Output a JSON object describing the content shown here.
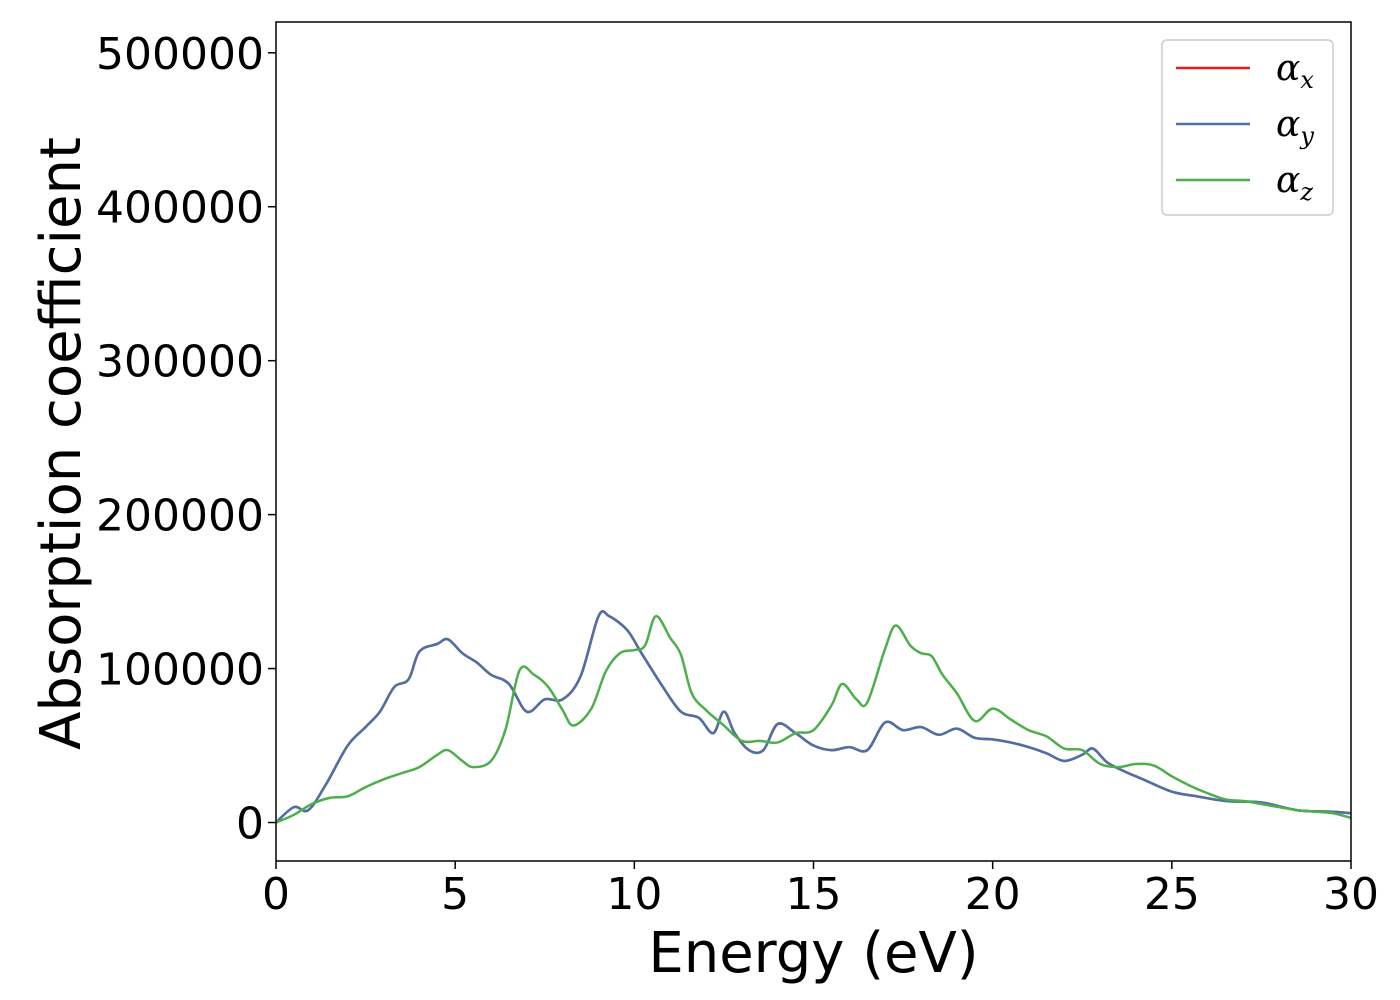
{
  "chart_data": {
    "type": "line",
    "title": "",
    "xlabel": "Energy (eV)",
    "ylabel": "Absorption coefficient",
    "xlim": [
      0,
      30
    ],
    "ylim": [
      -25000,
      520000
    ],
    "xticks": [
      0,
      5,
      10,
      15,
      20,
      25,
      30
    ],
    "xtick_labels": [
      "0",
      "5",
      "10",
      "15",
      "20",
      "25",
      "30"
    ],
    "yticks": [
      0,
      100000,
      200000,
      300000,
      400000,
      500000
    ],
    "ytick_labels": [
      "0",
      "100000",
      "200000",
      "300000",
      "400000",
      "500000"
    ],
    "grid": false,
    "legend_position": "top-right",
    "series": [
      {
        "name": "αx",
        "legend_base": "α",
        "legend_sub": "x",
        "color": "#e41a1c",
        "x": [
          0,
          0.5,
          0.9,
          1.4,
          2,
          2.5,
          2.9,
          3.3,
          3.7,
          4,
          4.5,
          4.8,
          5.2,
          5.6,
          6,
          6.5,
          7,
          7.5,
          8,
          8.5,
          9,
          9.3,
          9.8,
          10.2,
          10.8,
          11.3,
          11.8,
          12.2,
          12.5,
          12.8,
          13.2,
          13.6,
          14,
          14.5,
          15,
          15.5,
          16,
          16.5,
          17,
          17.5,
          18,
          18.5,
          19,
          19.5,
          20,
          20.5,
          21,
          21.5,
          22,
          22.5,
          22.8,
          23.2,
          23.7,
          24.2,
          25,
          25.7,
          26.5,
          27.5,
          28.5,
          29.5,
          30
        ],
        "y": [
          0,
          10000,
          8000,
          25000,
          50000,
          62000,
          72000,
          88000,
          93000,
          111000,
          116000,
          119000,
          110000,
          104000,
          96000,
          90000,
          72000,
          80000,
          80000,
          95000,
          134000,
          134000,
          125000,
          110000,
          88000,
          72000,
          68000,
          58000,
          72000,
          58000,
          47000,
          47000,
          64000,
          58000,
          50000,
          47000,
          49000,
          47000,
          65000,
          60000,
          62000,
          57000,
          61000,
          55000,
          54000,
          52000,
          49000,
          45000,
          40000,
          44000,
          48000,
          39000,
          33000,
          28000,
          20000,
          17000,
          14000,
          13000,
          8000,
          7000,
          6000
        ]
      },
      {
        "name": "αy",
        "legend_base": "α",
        "legend_sub": "y",
        "color": "#4a72a8",
        "x": [
          0,
          0.5,
          0.9,
          1.4,
          2,
          2.5,
          2.9,
          3.3,
          3.7,
          4,
          4.5,
          4.8,
          5.2,
          5.6,
          6,
          6.5,
          7,
          7.5,
          8,
          8.5,
          9,
          9.3,
          9.8,
          10.2,
          10.8,
          11.3,
          11.8,
          12.2,
          12.5,
          12.8,
          13.2,
          13.6,
          14,
          14.5,
          15,
          15.5,
          16,
          16.5,
          17,
          17.5,
          18,
          18.5,
          19,
          19.5,
          20,
          20.5,
          21,
          21.5,
          22,
          22.5,
          22.8,
          23.2,
          23.7,
          24.2,
          25,
          25.7,
          26.5,
          27.5,
          28.5,
          29.5,
          30
        ],
        "y": [
          0,
          10000,
          8000,
          25000,
          50000,
          62000,
          72000,
          88000,
          93000,
          111000,
          116000,
          119000,
          110000,
          104000,
          96000,
          90000,
          72000,
          80000,
          80000,
          95000,
          134000,
          134000,
          125000,
          110000,
          88000,
          72000,
          68000,
          58000,
          72000,
          58000,
          47000,
          47000,
          64000,
          58000,
          50000,
          47000,
          49000,
          47000,
          65000,
          60000,
          62000,
          57000,
          61000,
          55000,
          54000,
          52000,
          49000,
          45000,
          40000,
          44000,
          48000,
          39000,
          33000,
          28000,
          20000,
          17000,
          14000,
          13000,
          8000,
          7000,
          6000
        ]
      },
      {
        "name": "αz",
        "legend_base": "α",
        "legend_sub": "z",
        "color": "#4daf4a",
        "x": [
          0,
          0.5,
          1,
          1.5,
          2,
          2.5,
          3,
          3.5,
          4,
          4.5,
          4.8,
          5.2,
          5.5,
          6,
          6.4,
          6.8,
          7.2,
          7.6,
          8,
          8.3,
          8.8,
          9.2,
          9.6,
          10,
          10.3,
          10.6,
          11,
          11.3,
          11.6,
          12,
          12.5,
          13,
          13.5,
          14,
          14.5,
          15,
          15.5,
          15.8,
          16.2,
          16.5,
          17,
          17.3,
          17.7,
          18,
          18.3,
          18.6,
          19,
          19.5,
          20,
          20.5,
          21,
          21.5,
          22,
          22.5,
          23,
          23.5,
          24,
          24.5,
          25,
          25.5,
          26,
          26.5,
          27,
          27.5,
          28,
          28.5,
          29,
          29.5,
          30
        ],
        "y": [
          0,
          5000,
          12000,
          16000,
          17000,
          23000,
          28000,
          32000,
          36000,
          44000,
          47000,
          40000,
          36000,
          40000,
          60000,
          99000,
          96000,
          88000,
          73000,
          63000,
          74000,
          98000,
          110000,
          112000,
          115000,
          134000,
          120000,
          109000,
          84000,
          73000,
          63000,
          53000,
          53000,
          52000,
          58000,
          60000,
          76000,
          90000,
          80000,
          78000,
          113000,
          128000,
          115000,
          110000,
          108000,
          96000,
          84000,
          66000,
          74000,
          67000,
          60000,
          56000,
          48000,
          47000,
          38000,
          36000,
          38000,
          37000,
          30000,
          24000,
          19000,
          15000,
          14000,
          12000,
          10000,
          8000,
          7000,
          6000,
          3000
        ]
      }
    ]
  }
}
